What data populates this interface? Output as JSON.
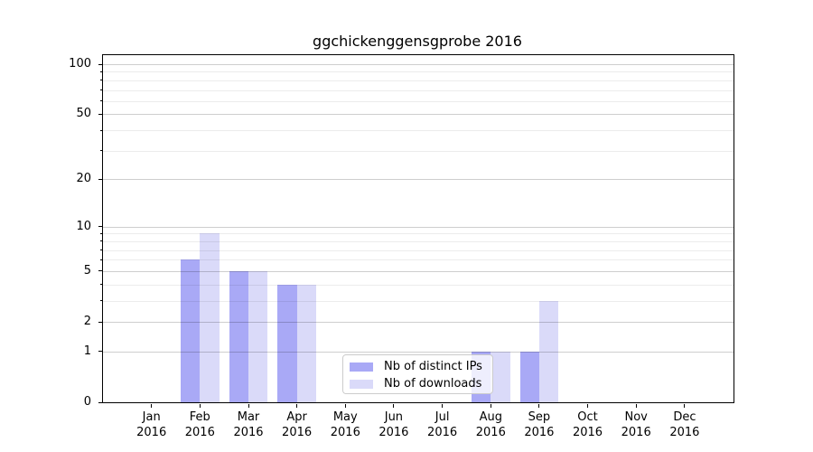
{
  "chart_data": {
    "type": "bar",
    "title": "ggchickenggensgprobe 2016",
    "categories": [
      {
        "month": "Jan",
        "year": "2016"
      },
      {
        "month": "Feb",
        "year": "2016"
      },
      {
        "month": "Mar",
        "year": "2016"
      },
      {
        "month": "Apr",
        "year": "2016"
      },
      {
        "month": "May",
        "year": "2016"
      },
      {
        "month": "Jun",
        "year": "2016"
      },
      {
        "month": "Jul",
        "year": "2016"
      },
      {
        "month": "Aug",
        "year": "2016"
      },
      {
        "month": "Sep",
        "year": "2016"
      },
      {
        "month": "Oct",
        "year": "2016"
      },
      {
        "month": "Nov",
        "year": "2016"
      },
      {
        "month": "Dec",
        "year": "2016"
      }
    ],
    "series": [
      {
        "name": "Nb of distinct IPs",
        "color": "#a9a9f6",
        "values": [
          0,
          6,
          5,
          4,
          0,
          0,
          0,
          1,
          1,
          0,
          0,
          0
        ]
      },
      {
        "name": "Nb of downloads",
        "color": "#dadaf9",
        "values": [
          0,
          9,
          5,
          4,
          0,
          0,
          0,
          1,
          3,
          0,
          0,
          0
        ]
      }
    ],
    "y_axis": {
      "scale": "log1p",
      "major_ticks": [
        0,
        1,
        2,
        5,
        10,
        20,
        50,
        100
      ],
      "tick_labels": [
        "0",
        "1",
        "2",
        "5",
        "10",
        "20",
        "50",
        "100"
      ],
      "minor_gridlines": [
        3,
        4,
        6,
        7,
        8,
        9,
        30,
        40,
        60,
        70,
        80,
        90
      ]
    },
    "legend": {
      "location": "lower center"
    },
    "grid": true,
    "colors": {
      "bar_distinct_ips": "#a9a9f6",
      "bar_downloads": "#dadaf9",
      "major_grid": "#cecece",
      "minor_grid": "#ececec",
      "axis": "#000000",
      "legend_border": "#cccccc",
      "background": "#ffffff"
    }
  }
}
